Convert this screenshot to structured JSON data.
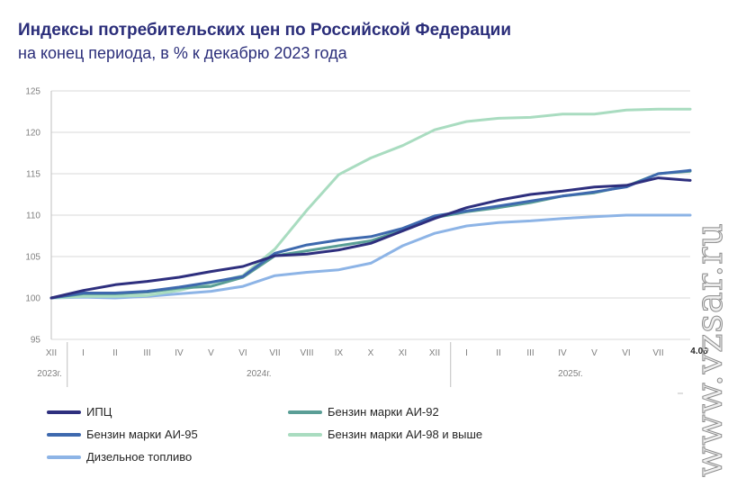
{
  "header": {
    "title": "Индексы потребительских цен по Российской Федерации",
    "subtitle": "на конец периода, в % к декабрю 2023 года"
  },
  "watermark": "www.vzsar.ru",
  "chart_data": {
    "type": "line",
    "title": "Индексы потребительских цен по Российской Федерации",
    "subtitle": "на конец периода, в % к декабрю 2023 года",
    "ylim": [
      95,
      125
    ],
    "yticks": [
      95,
      100,
      105,
      110,
      115,
      120,
      125
    ],
    "categories": [
      "XII",
      "I",
      "II",
      "III",
      "IV",
      "V",
      "VI",
      "VII",
      "VIII",
      "IX",
      "X",
      "XI",
      "XII",
      "I",
      "II",
      "III",
      "IV",
      "V",
      "VI",
      "VII",
      "4.08"
    ],
    "x_tick_labels": [
      "XII",
      "I",
      "II",
      "III",
      "IV",
      "V",
      "VI",
      "VII",
      "VIII",
      "IX",
      "X",
      "XI",
      "XII",
      "I",
      "II",
      "III",
      "IV",
      "V",
      "VI",
      "VII"
    ],
    "last_point_label": "4.08",
    "year_labels": [
      "2023г.",
      "2024г.",
      "2025г."
    ],
    "grid": true,
    "legend_position": "bottom",
    "series": [
      {
        "name": "ИПЦ",
        "color": "#2e2f7e",
        "values": [
          100.0,
          100.9,
          101.6,
          102.0,
          102.5,
          103.2,
          103.8,
          105.1,
          105.3,
          105.8,
          106.6,
          108.1,
          109.6,
          110.9,
          111.8,
          112.5,
          112.9,
          113.4,
          113.6,
          114.5,
          114.2
        ]
      },
      {
        "name": "Бензин марки АИ-92",
        "color": "#5a9e96",
        "values": [
          100.0,
          100.5,
          100.5,
          100.7,
          101.2,
          101.4,
          102.5,
          105.1,
          105.7,
          106.3,
          106.9,
          108.2,
          109.7,
          110.4,
          110.9,
          111.5,
          112.3,
          112.7,
          113.5,
          115.0,
          115.3
        ]
      },
      {
        "name": "Бензин марки АИ-95",
        "color": "#3e69ae",
        "values": [
          100.0,
          100.6,
          100.6,
          100.8,
          101.3,
          101.9,
          102.6,
          105.4,
          106.4,
          107.0,
          107.4,
          108.4,
          109.9,
          110.5,
          111.1,
          111.7,
          112.3,
          112.8,
          113.4,
          115.0,
          115.4
        ]
      },
      {
        "name": "Бензин марки АИ-98 и выше",
        "color": "#a9dcc0",
        "values": [
          100.0,
          100.2,
          100.2,
          100.3,
          100.9,
          101.8,
          102.7,
          105.9,
          110.6,
          114.9,
          116.9,
          118.4,
          120.3,
          121.3,
          121.7,
          121.8,
          122.2,
          122.2,
          122.7,
          122.8,
          122.8
        ]
      },
      {
        "name": "Дизельное топливо",
        "color": "#8db4e6",
        "values": [
          100.0,
          100.1,
          100.0,
          100.2,
          100.5,
          100.8,
          101.4,
          102.7,
          103.1,
          103.4,
          104.2,
          106.3,
          107.8,
          108.7,
          109.1,
          109.3,
          109.6,
          109.8,
          110.0,
          110.0,
          110.0
        ]
      }
    ]
  }
}
